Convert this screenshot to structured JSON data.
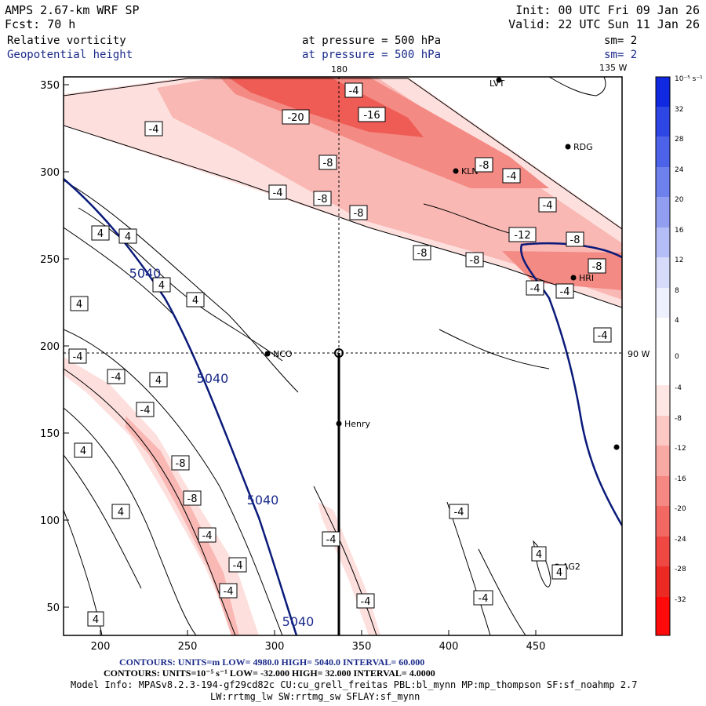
{
  "header": {
    "model_title": "AMPS 2.67-km WRF SP",
    "forecast": "Fcst:    70 h",
    "init": "Init: 00 UTC Fri 09 Jan 26",
    "valid": "Valid: 22 UTC Sun 11 Jan 26",
    "field1": {
      "name": "Relative vorticity",
      "level": "at pressure =  500 hPa",
      "smooth": "sm= 2"
    },
    "field2": {
      "name": "Geopotential height",
      "level": "at pressure =  500 hPa",
      "smooth": "sm= 2"
    }
  },
  "map": {
    "meridian_labels": [
      "180",
      "135 W",
      "90 W"
    ],
    "x_ticks": [
      "200",
      "250",
      "300",
      "350",
      "400",
      "450"
    ],
    "y_ticks": [
      "50",
      "100",
      "150",
      "200",
      "250",
      "300",
      "350"
    ],
    "stations": [
      "LVT",
      "RDG",
      "KLN",
      "HRI",
      "NCO",
      "Henry",
      "AG2"
    ],
    "height_contour_labels": [
      "5040",
      "5040",
      "5040",
      "5040"
    ],
    "vorticity_labels": [
      "-4",
      "-20",
      "-16",
      "-4",
      "-8",
      "-8",
      "-4",
      "-4",
      "-8",
      "-8",
      "-4",
      "-8",
      "-12",
      "-8",
      "-8",
      "-8",
      "-8",
      "-4",
      "-4",
      "-4",
      "4",
      "4",
      "4",
      "4",
      "-4",
      "-4",
      "4",
      "-4",
      "-4",
      "4",
      "-8",
      "-8",
      "4",
      "4",
      "-4",
      "-4",
      "-4",
      "-4",
      "-4",
      "-4",
      "-4",
      "4",
      "4",
      "4"
    ]
  },
  "colorbar": {
    "unit": "10⁻⁵ s⁻¹",
    "ticks": [
      "32",
      "28",
      "24",
      "20",
      "16",
      "12",
      "8",
      "4",
      "0",
      "-4",
      "-8",
      "-12",
      "-16",
      "-20",
      "-24",
      "-28",
      "-32"
    ]
  },
  "footer": {
    "line1": "CONTOURS:  UNITS=m   LOW=  4980.0            HIGH=  5040.0          INTERVAL=    60.000",
    "line2": "CONTOURS:  UNITS=10⁻⁵ s⁻¹   LOW= -32.000              HIGH=  32.000        INTERVAL=     4.0000",
    "line3": "Model Info: MPASv8.2.3-194-gf29cd82c CU:cu_grell_freitas PBL:bl_mynn MP:mp_thompson SF:sf_noahmp 2.7",
    "line4": "LW:rrtmg_lw SW:rrtmg_sw SFLAY:sf_mynn"
  },
  "colors": {
    "vort_neg": "#e8403a",
    "vort_pos": "#2030c8",
    "height_contour": "#0a1a7a"
  }
}
